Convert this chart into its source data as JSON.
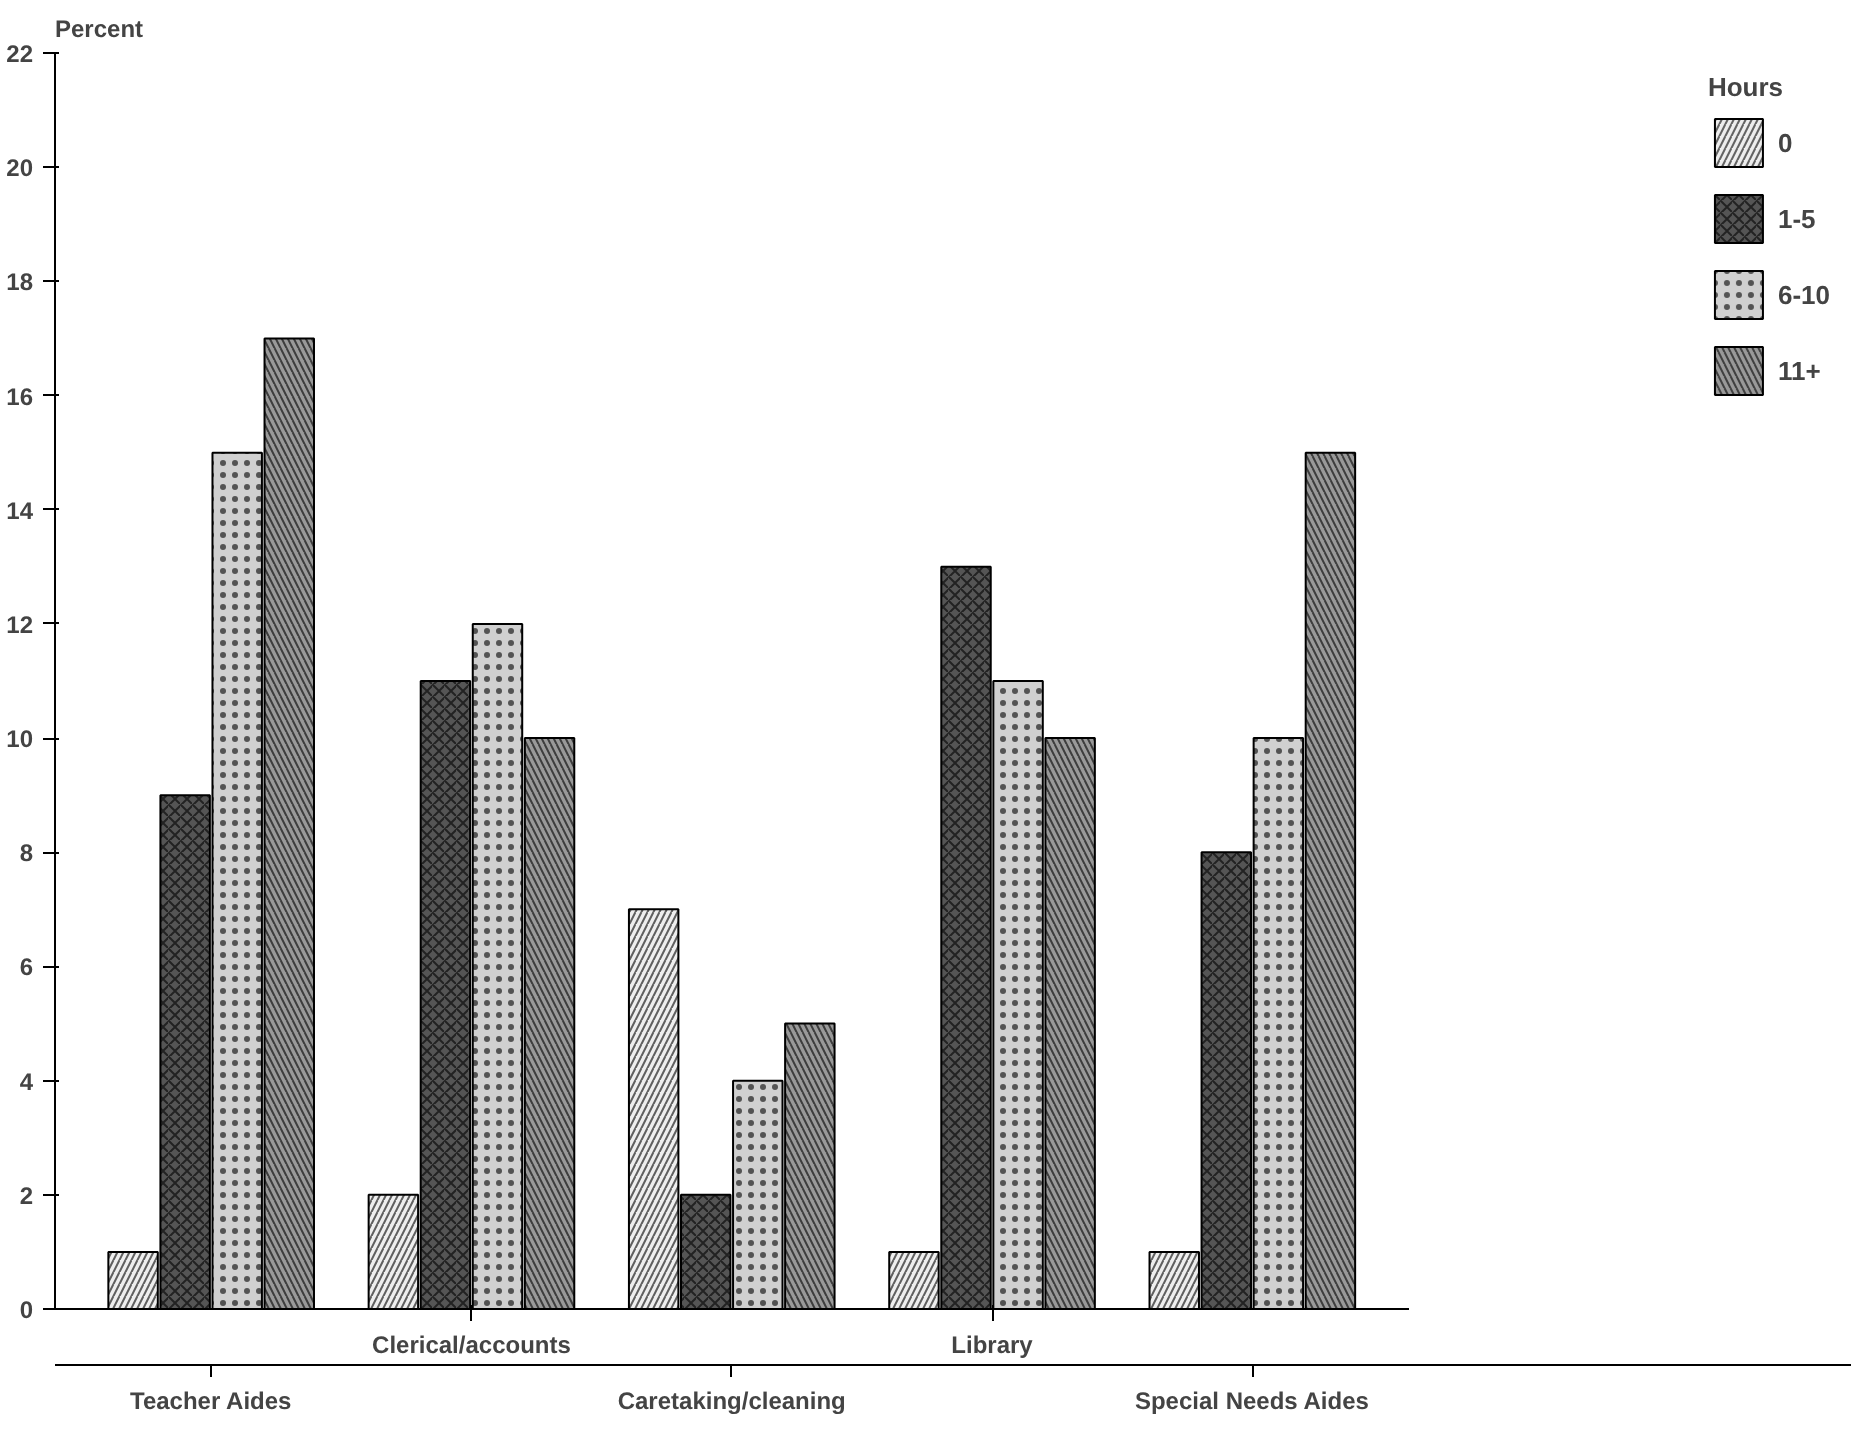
{
  "chart_data": {
    "type": "bar",
    "ylabel": "Percent",
    "legend_title": "Hours",
    "categories": [
      "Teacher Aides",
      "Clerical/accounts",
      "Caretaking/cleaning",
      "Library",
      "Special Needs Aides"
    ],
    "series": [
      {
        "name": "0",
        "color": "#eeeeee",
        "values": [
          1,
          2,
          7,
          1,
          1
        ]
      },
      {
        "name": "1-5",
        "color": "#555555",
        "values": [
          9,
          11,
          2,
          13,
          8
        ]
      },
      {
        "name": "6-10",
        "color": "#d0d0d0",
        "values": [
          15,
          12,
          4,
          11,
          10
        ]
      },
      {
        "name": "11+",
        "color": "#999999",
        "values": [
          17,
          10,
          5,
          10,
          15
        ]
      }
    ],
    "ylim": [
      0,
      22
    ],
    "yticks": [
      0,
      2,
      4,
      6,
      8,
      10,
      12,
      14,
      16,
      18,
      20,
      22
    ],
    "grid": false,
    "legend": "right"
  }
}
